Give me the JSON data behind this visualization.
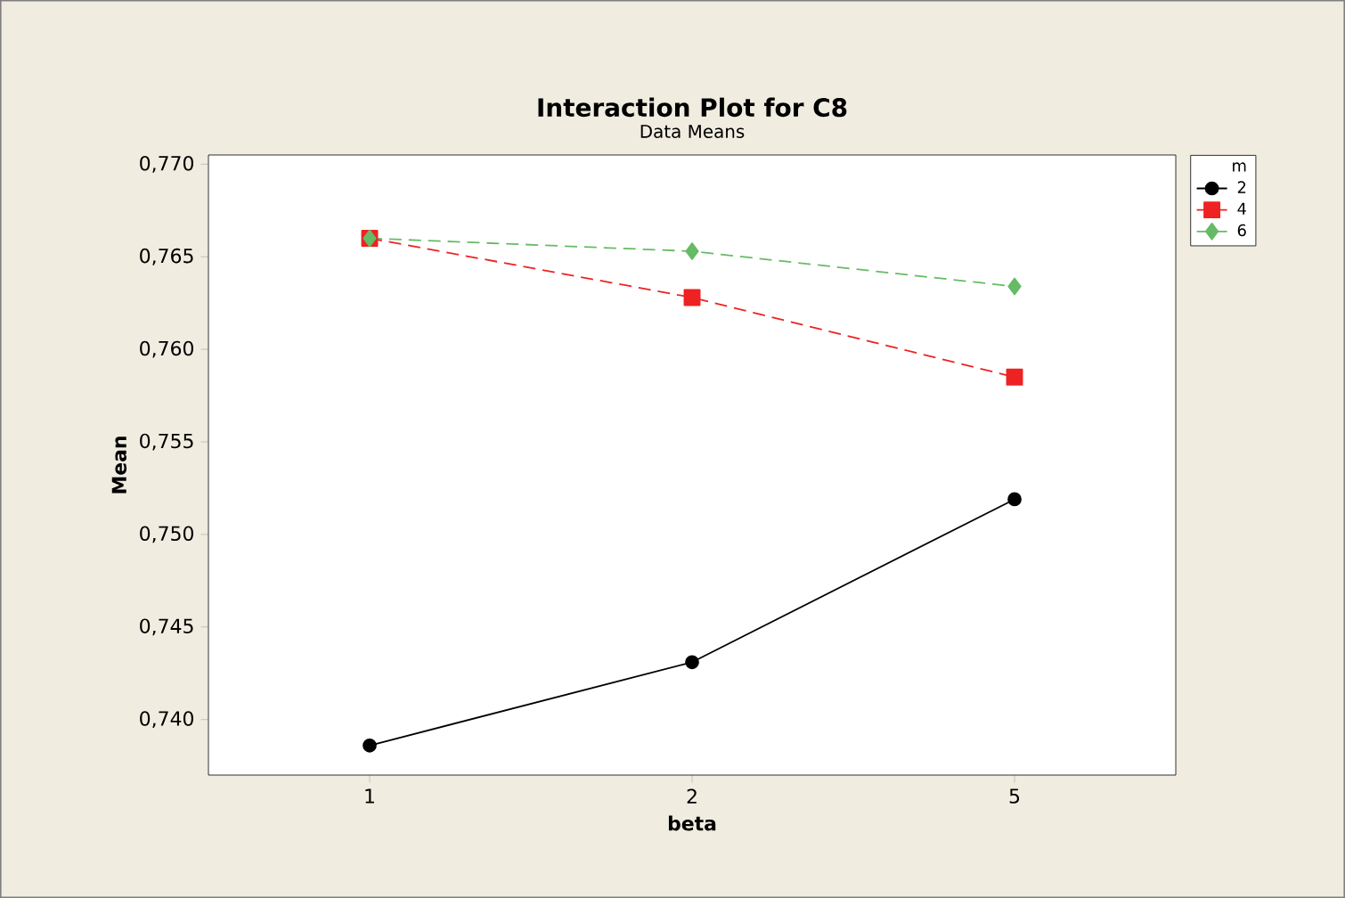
{
  "chart_data": {
    "type": "line",
    "title": "Interaction Plot for C8",
    "subtitle": "Data Means",
    "xlabel": "beta",
    "ylabel": "Mean",
    "legend_title": "m",
    "categories": [
      "1",
      "2",
      "5"
    ],
    "series": [
      {
        "name": "2",
        "color": "#000000",
        "values": [
          0.7386,
          0.7431,
          0.7519
        ],
        "marker": "circle",
        "line_style": "solid"
      },
      {
        "name": "4",
        "color": "#ee2222",
        "values": [
          0.766,
          0.7628,
          0.7585
        ],
        "marker": "square",
        "line_style": "dashed"
      },
      {
        "name": "6",
        "color": "#66bb66",
        "values": [
          0.766,
          0.7653,
          0.7634
        ],
        "marker": "diamond",
        "line_style": "dashed"
      }
    ],
    "ylim": [
      0.737,
      0.7705
    ],
    "yticks": [
      {
        "value": 0.74,
        "label": "0,740"
      },
      {
        "value": 0.745,
        "label": "0,745"
      },
      {
        "value": 0.75,
        "label": "0,750"
      },
      {
        "value": 0.755,
        "label": "0,755"
      },
      {
        "value": 0.76,
        "label": "0,760"
      },
      {
        "value": 0.765,
        "label": "0,765"
      },
      {
        "value": 0.77,
        "label": "0,770"
      }
    ],
    "legend": "top right"
  }
}
